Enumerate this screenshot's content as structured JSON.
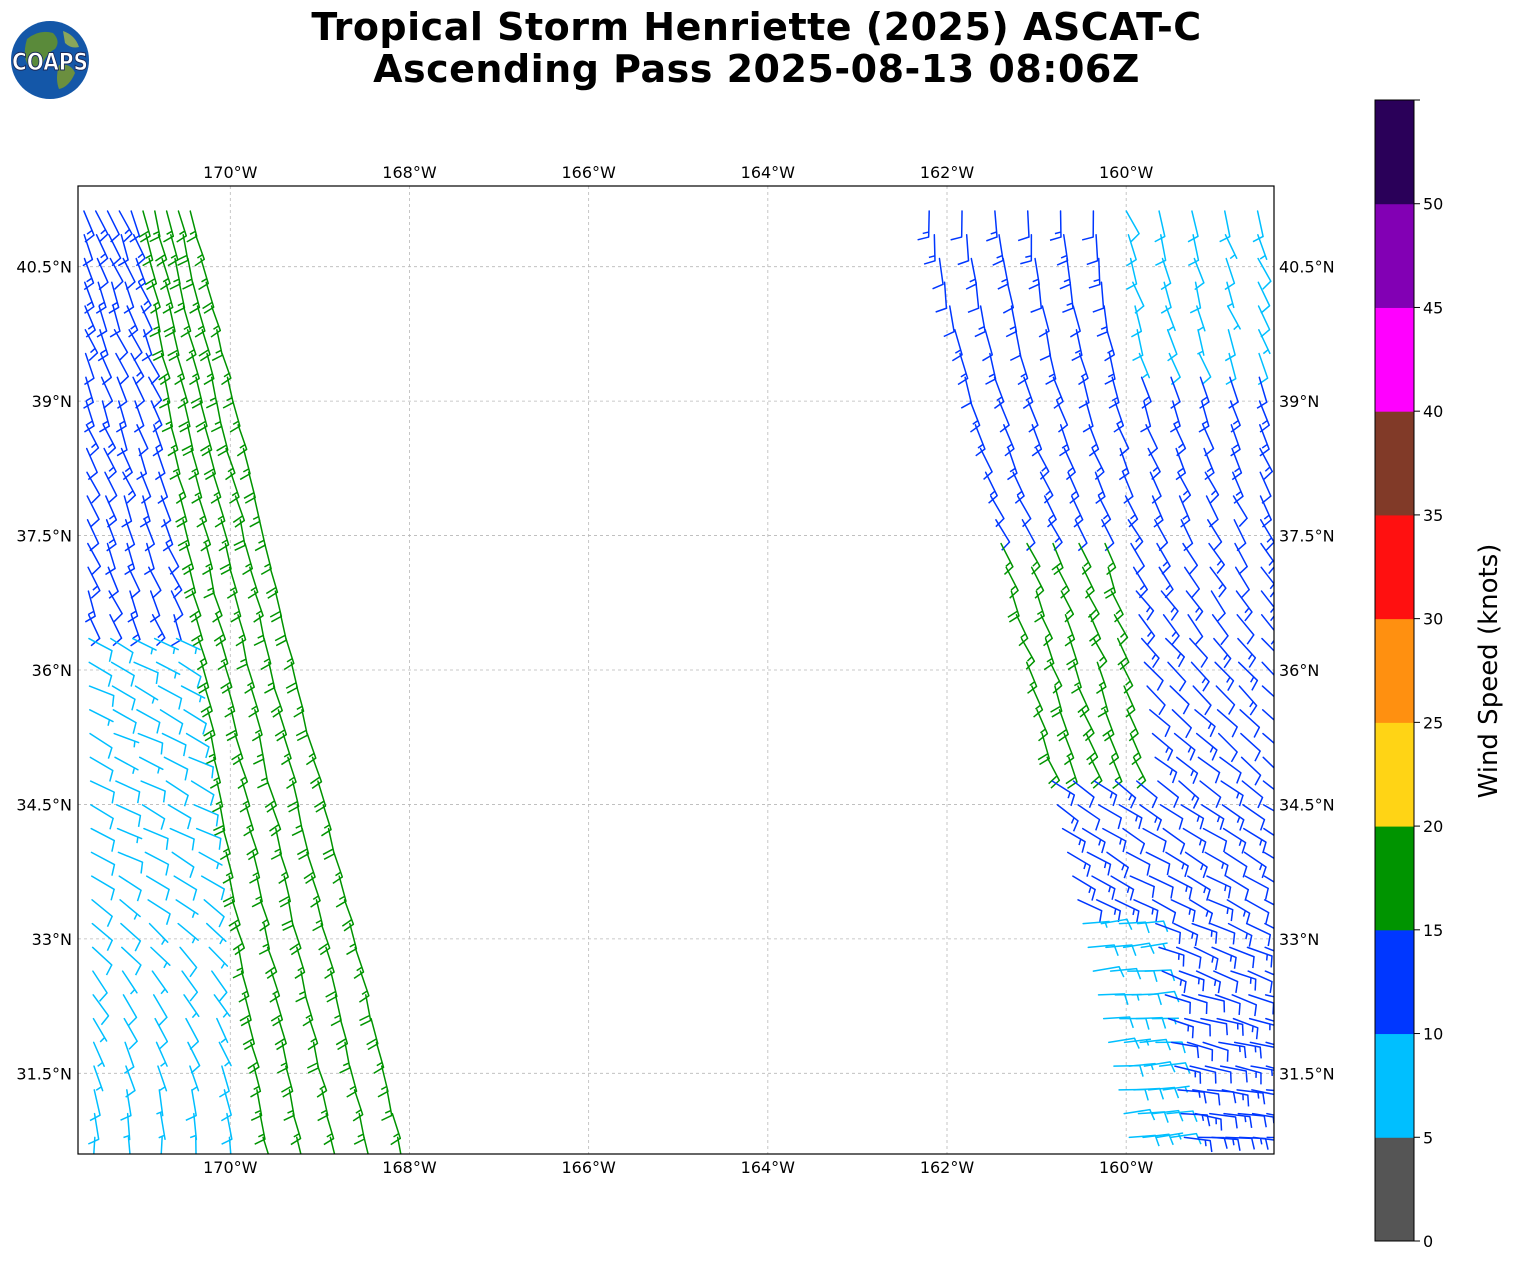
{
  "title": {
    "line1": "Tropical Storm Henriette (2025) ASCAT-C",
    "line2": "Ascending Pass 2025-08-13 08:06Z"
  },
  "logo": {
    "text": "COAPS",
    "icon": "globe-icon"
  },
  "map": {
    "lon_range": [
      -171.7,
      -158.35
    ],
    "lat_range": [
      30.6,
      41.4
    ],
    "lon_ticks": [
      "170°W",
      "168°W",
      "166°W",
      "164°W",
      "162°W",
      "160°W"
    ],
    "lon_tick_values": [
      -170,
      -168,
      -166,
      -164,
      -162,
      -160
    ],
    "lat_ticks": [
      "40.5°N",
      "39°N",
      "37.5°N",
      "36°N",
      "34.5°N",
      "33°N",
      "31.5°N"
    ],
    "lat_tick_values": [
      40.5,
      39,
      37.5,
      36,
      34.5,
      33,
      31.5
    ],
    "gridlines": true,
    "gridline_style": "dashed"
  },
  "chart_data": {
    "type": "wind_barb_map",
    "swaths": [
      {
        "name": "west",
        "top_edge_lat": 41.2,
        "top_west_lon": -171.7,
        "top_east_lon": -170.4,
        "bottom_edge_lat": 30.6,
        "bottom_west_lon": -171.7,
        "bottom_east_lon": -167.9,
        "dominant_speed_band_kt": "15-20",
        "slow_region": "south-west (0-10 kt)"
      },
      {
        "name": "east",
        "top_edge_lat": 41.2,
        "top_west_lon": -162.4,
        "top_east_lon": -158.35,
        "bottom_edge_lat": 30.6,
        "bottom_west_lon": -160.0,
        "bottom_east_lon": -158.35,
        "dominant_speed_band_kt": "10-15",
        "slow_region": "north-east and south-west edges (5-10 kt)"
      }
    ]
  },
  "colorbar": {
    "label": "Wind Speed (knots)",
    "bounds": [
      0,
      5,
      10,
      15,
      20,
      25,
      30,
      35,
      40,
      45,
      50,
      55
    ],
    "tick_labels": [
      "0",
      "5",
      "10",
      "15",
      "20",
      "25",
      "30",
      "35",
      "40",
      "45",
      "50"
    ],
    "colors": [
      "#555555",
      "#00bfff",
      "#0037ff",
      "#009400",
      "#ffd415",
      "#ff9010",
      "#ff1010",
      "#813a28",
      "#ff00ff",
      "#8200b4",
      "#2a0059"
    ]
  }
}
